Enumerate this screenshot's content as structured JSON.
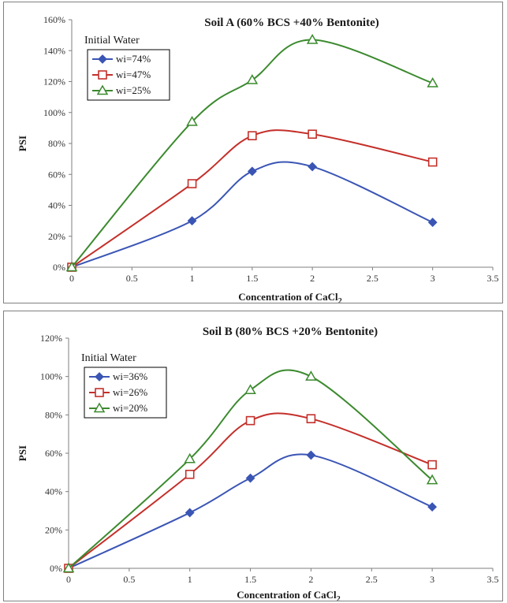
{
  "chart_data": [
    {
      "type": "line",
      "title": "Soil A (60% BCS +40% Bentonite)",
      "xlabel": "Concentration of CaCl",
      "xlabel_subscript": "2",
      "ylabel": "PSI",
      "legend_title": "Initial Water",
      "legend_position": "top-left",
      "xlim": [
        0,
        3.5
      ],
      "ylim": [
        0,
        1.6
      ],
      "x_ticks": [
        "0",
        "0.5",
        "1",
        "1.5",
        "2",
        "2.5",
        "3",
        "3.5"
      ],
      "y_ticks": [
        "0%",
        "20%",
        "40%",
        "60%",
        "80%",
        "100%",
        "120%",
        "140%",
        "160%"
      ],
      "grid": false,
      "x": [
        0,
        1,
        1.5,
        2,
        3
      ],
      "series": [
        {
          "name": "wi=74%",
          "marker": "diamond",
          "color": "#3a55b4",
          "values": [
            0,
            0.3,
            0.62,
            0.65,
            0.29
          ]
        },
        {
          "name": "wi=47%",
          "marker": "square",
          "color": "#c4302b",
          "values": [
            0,
            0.54,
            0.85,
            0.86,
            0.68
          ]
        },
        {
          "name": "wi=25%",
          "marker": "triangle",
          "color": "#3b8a2e",
          "values": [
            0,
            0.94,
            1.21,
            1.47,
            1.19
          ]
        }
      ]
    },
    {
      "type": "line",
      "title": "Soil B (80% BCS +20% Bentonite)",
      "xlabel": "Concentration of CaCl",
      "xlabel_subscript": "2",
      "ylabel": "PSI",
      "legend_title": "Initial Water",
      "legend_position": "top-left",
      "xlim": [
        0,
        3.5
      ],
      "ylim": [
        0,
        1.2
      ],
      "x_ticks": [
        "0",
        "0.5",
        "1",
        "1.5",
        "2",
        "2.5",
        "3",
        "3.5"
      ],
      "y_ticks": [
        "0%",
        "20%",
        "40%",
        "60%",
        "80%",
        "100%",
        "120%"
      ],
      "grid": false,
      "x": [
        0,
        1,
        1.5,
        2,
        3
      ],
      "series": [
        {
          "name": "wi=36%",
          "marker": "diamond",
          "color": "#3a55b4",
          "values": [
            0,
            0.29,
            0.47,
            0.59,
            0.32
          ]
        },
        {
          "name": "wi=26%",
          "marker": "square",
          "color": "#c4302b",
          "values": [
            0,
            0.49,
            0.77,
            0.78,
            0.54
          ]
        },
        {
          "name": "wi=20%",
          "marker": "triangle",
          "color": "#3b8a2e",
          "values": [
            0,
            0.57,
            0.93,
            1.0,
            0.46
          ]
        }
      ]
    }
  ]
}
